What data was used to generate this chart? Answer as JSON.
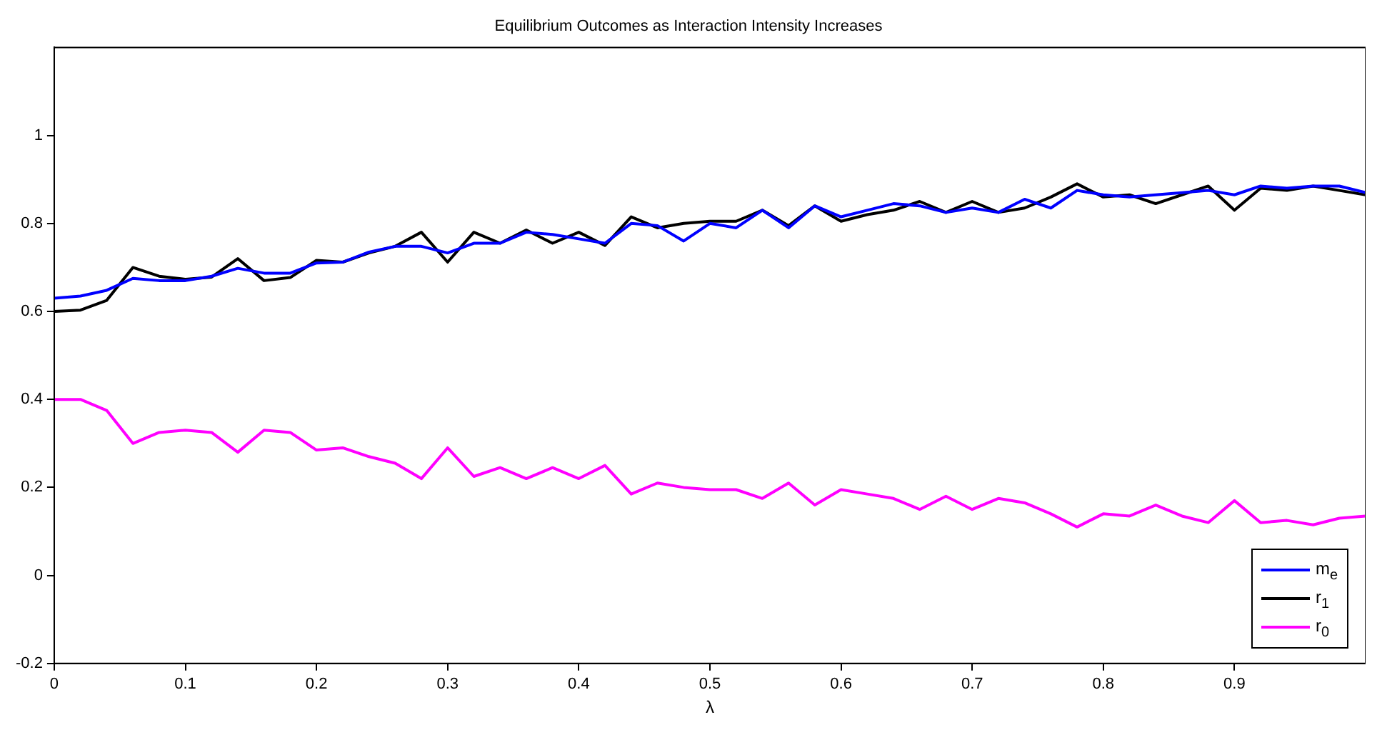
{
  "chart_data": {
    "type": "line",
    "title": "Equilibrium Outcomes as Interaction Intensity Increases",
    "xlabel": "λ",
    "x": [
      0,
      0.02,
      0.04,
      0.06,
      0.08,
      0.1,
      0.12,
      0.14,
      0.16,
      0.18,
      0.2,
      0.22,
      0.24,
      0.26,
      0.28,
      0.3,
      0.32,
      0.34,
      0.36,
      0.38,
      0.4,
      0.42,
      0.44,
      0.46,
      0.48,
      0.5,
      0.52,
      0.54,
      0.56,
      0.58,
      0.6,
      0.62,
      0.64,
      0.66,
      0.68,
      0.7,
      0.72,
      0.74,
      0.76,
      0.78,
      0.8,
      0.82,
      0.84,
      0.86,
      0.88,
      0.9,
      0.92,
      0.94,
      0.96,
      0.98,
      1.0
    ],
    "series": [
      {
        "name": "m$_{e}$",
        "color": "#0000ff",
        "values": [
          0.63,
          0.635,
          0.648,
          0.675,
          0.67,
          0.67,
          0.68,
          0.698,
          0.687,
          0.687,
          0.71,
          0.712,
          0.735,
          0.748,
          0.748,
          0.733,
          0.755,
          0.755,
          0.78,
          0.775,
          0.765,
          0.755,
          0.8,
          0.795,
          0.76,
          0.8,
          0.79,
          0.83,
          0.79,
          0.84,
          0.815,
          0.83,
          0.845,
          0.84,
          0.825,
          0.835,
          0.825,
          0.855,
          0.835,
          0.875,
          0.865,
          0.86,
          0.865,
          0.87,
          0.875,
          0.865,
          0.885,
          0.88,
          0.885,
          0.885,
          0.87
        ]
      },
      {
        "name": "r$_{1}$",
        "color": "#000000",
        "values": [
          0.6,
          0.603,
          0.625,
          0.7,
          0.68,
          0.673,
          0.678,
          0.72,
          0.67,
          0.677,
          0.716,
          0.712,
          0.733,
          0.748,
          0.78,
          0.712,
          0.78,
          0.755,
          0.785,
          0.755,
          0.78,
          0.75,
          0.815,
          0.79,
          0.8,
          0.805,
          0.805,
          0.83,
          0.795,
          0.84,
          0.805,
          0.82,
          0.83,
          0.85,
          0.825,
          0.85,
          0.825,
          0.835,
          0.86,
          0.89,
          0.86,
          0.865,
          0.845,
          0.865,
          0.885,
          0.83,
          0.88,
          0.875,
          0.885,
          0.875,
          0.865
        ]
      },
      {
        "name": "r$_{0}$",
        "color": "#ff00ff",
        "values": [
          0.4,
          0.4,
          0.375,
          0.3,
          0.325,
          0.33,
          0.325,
          0.28,
          0.33,
          0.325,
          0.285,
          0.29,
          0.27,
          0.255,
          0.22,
          0.29,
          0.225,
          0.245,
          0.22,
          0.245,
          0.22,
          0.25,
          0.185,
          0.21,
          0.2,
          0.195,
          0.195,
          0.175,
          0.21,
          0.16,
          0.195,
          0.185,
          0.175,
          0.15,
          0.18,
          0.15,
          0.175,
          0.165,
          0.14,
          0.11,
          0.14,
          0.135,
          0.16,
          0.135,
          0.12,
          0.17,
          0.12,
          0.125,
          0.115,
          0.13,
          0.135
        ]
      }
    ],
    "xlim": [
      0,
      1
    ],
    "xticks": [
      0,
      0.1,
      0.2,
      0.3,
      0.4,
      0.5,
      0.6,
      0.7,
      0.8,
      0.9
    ],
    "ylim": [
      -0.2,
      1.2
    ],
    "yticks": [
      -0.2,
      0,
      0.2,
      0.4,
      0.6,
      0.8,
      1
    ],
    "grid": false,
    "legend": "bottom right",
    "marker": "none",
    "line_style": "solid"
  }
}
